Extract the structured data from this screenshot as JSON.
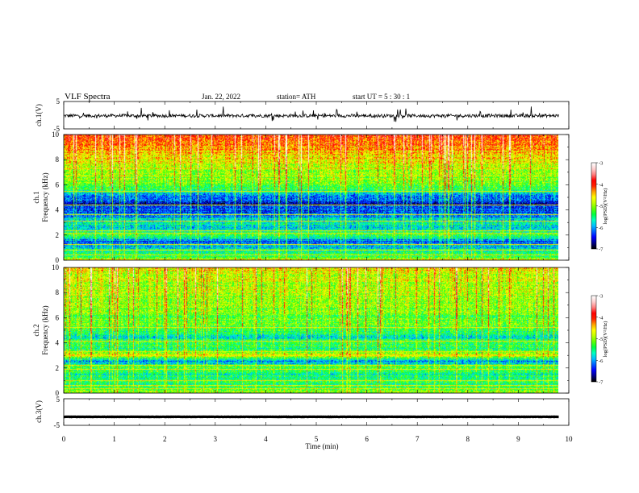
{
  "header": {
    "title": "VLF  Spectra",
    "date": "Jan. 22, 2022",
    "station": "station= ATH",
    "start": "start  UT  =    5  : 30 : 1"
  },
  "chart_data": {
    "type": "heatmap",
    "xlabel": "Time  (min)",
    "xlim": [
      0,
      10
    ],
    "xticks": [
      "0",
      "1",
      "2",
      "3",
      "4",
      "5",
      "6",
      "7",
      "8",
      "9",
      "10"
    ],
    "data_end_min": 9.8,
    "panels": [
      {
        "type": "line",
        "ylabel": "ch.1(V)",
        "ylim": [
          -5,
          5
        ],
        "yticks": [
          "5",
          "-5"
        ],
        "baseline": -0.2,
        "noise_amplitude": 0.6,
        "spike_amplitude": 2.5
      },
      {
        "type": "heatmap",
        "ylabel_top": "ch.1",
        "ylabel": "Frequency  (kHz)",
        "ylim": [
          0,
          10
        ],
        "yticks": [
          "0",
          "2",
          "4",
          "6",
          "8",
          "10"
        ],
        "colorbar": {
          "label": "log(PSD)(V²/Hz)",
          "range": [
            -7,
            -3
          ],
          "ticks": [
            "-3",
            "-4",
            "-5",
            "-6",
            "-7"
          ]
        },
        "profile_khz": [
          0,
          0.5,
          1.0,
          1.5,
          2.0,
          2.5,
          3.0,
          3.5,
          4.0,
          4.5,
          5.0,
          5.5,
          6.0,
          7.0,
          8.0,
          9.0,
          10.0
        ],
        "profile_logpsd": [
          -4.8,
          -5.6,
          -5.8,
          -6.2,
          -5.2,
          -5.8,
          -5.6,
          -6.1,
          -6.3,
          -6.5,
          -6.1,
          -5.6,
          -5.2,
          -4.9,
          -4.6,
          -4.3,
          -4.1
        ],
        "tone_lines_khz": [
          0.4,
          0.8,
          1.2,
          2.1,
          2.3,
          3.1,
          3.6,
          4.4,
          5.5
        ]
      },
      {
        "type": "heatmap",
        "ylabel_top": "ch.2",
        "ylabel": "Frequency  (kHz)",
        "ylim": [
          0,
          10
        ],
        "yticks": [
          "0",
          "2",
          "4",
          "6",
          "8",
          "10"
        ],
        "colorbar": {
          "label": "log(PSD)(V²/Hz)",
          "range": [
            -7,
            -3
          ],
          "ticks": [
            "-3",
            "-4",
            "-5",
            "-6",
            "-7"
          ]
        },
        "profile_khz": [
          0,
          0.5,
          1.0,
          1.5,
          2.0,
          2.5,
          3.0,
          3.5,
          4.0,
          4.5,
          5.0,
          5.5,
          6.0,
          7.0,
          8.0,
          9.0,
          10.0
        ],
        "profile_logpsd": [
          -5.0,
          -5.3,
          -5.4,
          -5.6,
          -5.1,
          -6.1,
          -4.6,
          -5.5,
          -5.2,
          -5.8,
          -5.3,
          -5.2,
          -5.1,
          -5.0,
          -4.9,
          -4.8,
          -4.6
        ],
        "tone_lines_khz": [
          0.3,
          0.6,
          1.0,
          1.9,
          2.2,
          3.0,
          3.3,
          4.1,
          5.2
        ]
      },
      {
        "type": "line",
        "ylabel": "ch.3(V)",
        "ylim": [
          -5,
          5
        ],
        "yticks": [
          "5",
          "-5"
        ],
        "baseline": -1.8,
        "noise_amplitude": 0.05,
        "spike_amplitude": 0
      }
    ]
  },
  "colors": {
    "frame": "#000000",
    "trace": "#000000",
    "colormap": [
      "#000000",
      "#00008b",
      "#0000ff",
      "#0060ff",
      "#00c0ff",
      "#00ffc0",
      "#00ff40",
      "#60ff00",
      "#c0ff00",
      "#ffff00",
      "#ffa000",
      "#ff2000",
      "#ff0000",
      "#ff8080",
      "#ffd0d0",
      "#ffffff"
    ]
  }
}
